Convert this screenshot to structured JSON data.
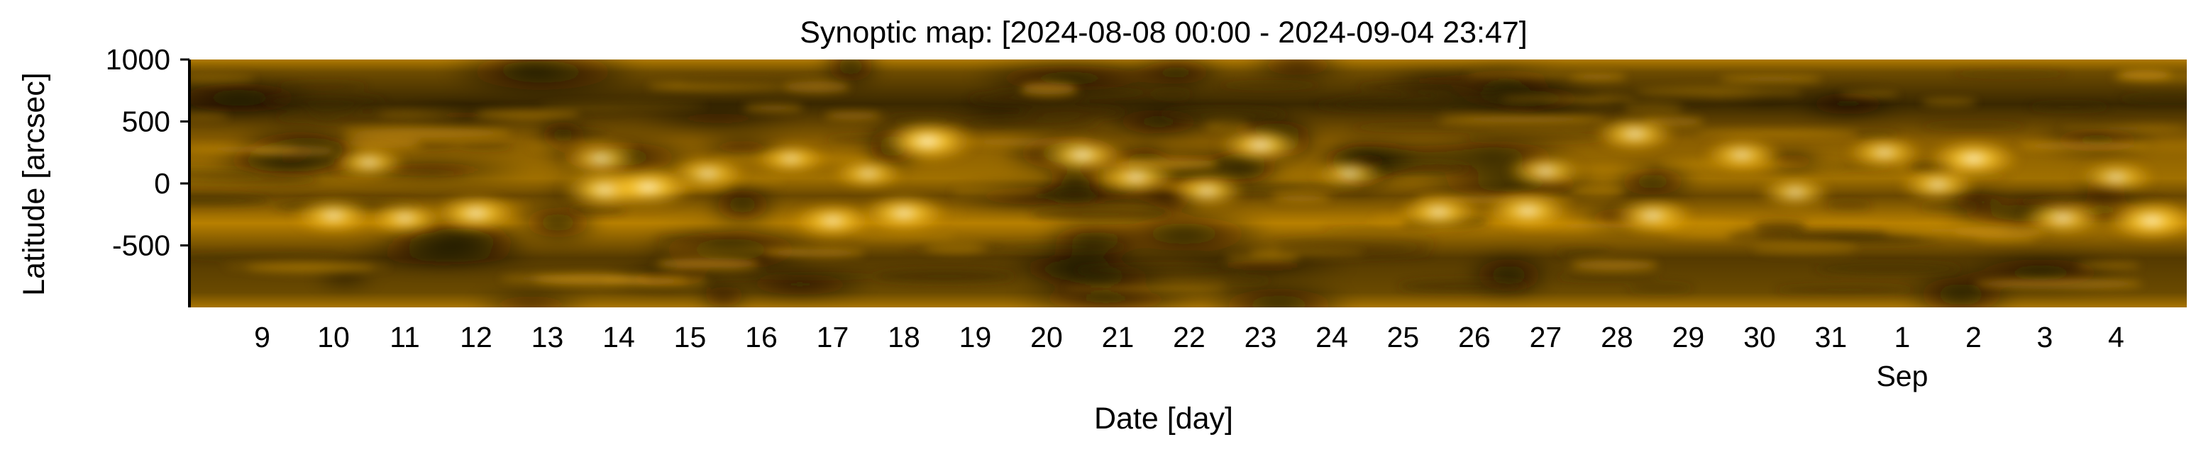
{
  "chart_data": {
    "type": "heatmap",
    "title": "Synoptic map: [2024-08-08 00:00 - 2024-09-04 23:47]",
    "xlabel": "Date [day]",
    "ylabel": "Latitude [arcsec]",
    "x_range": [
      "2024-08-08 00:00",
      "2024-09-04 23:47"
    ],
    "ylim": [
      -1000,
      1000
    ],
    "y_ticks": [
      {
        "value": 1000,
        "label": "1000"
      },
      {
        "value": 500,
        "label": "500"
      },
      {
        "value": 0,
        "label": "0"
      },
      {
        "value": -500,
        "label": "-500"
      }
    ],
    "x_ticks": [
      {
        "date": "2024-08-09",
        "label": "9"
      },
      {
        "date": "2024-08-10",
        "label": "10"
      },
      {
        "date": "2024-08-11",
        "label": "11"
      },
      {
        "date": "2024-08-12",
        "label": "12"
      },
      {
        "date": "2024-08-13",
        "label": "13"
      },
      {
        "date": "2024-08-14",
        "label": "14"
      },
      {
        "date": "2024-08-15",
        "label": "15"
      },
      {
        "date": "2024-08-16",
        "label": "16"
      },
      {
        "date": "2024-08-17",
        "label": "17"
      },
      {
        "date": "2024-08-18",
        "label": "18"
      },
      {
        "date": "2024-08-19",
        "label": "19"
      },
      {
        "date": "2024-08-20",
        "label": "20"
      },
      {
        "date": "2024-08-21",
        "label": "21"
      },
      {
        "date": "2024-08-22",
        "label": "22"
      },
      {
        "date": "2024-08-23",
        "label": "23"
      },
      {
        "date": "2024-08-24",
        "label": "24"
      },
      {
        "date": "2024-08-25",
        "label": "25"
      },
      {
        "date": "2024-08-26",
        "label": "26"
      },
      {
        "date": "2024-08-27",
        "label": "27"
      },
      {
        "date": "2024-08-28",
        "label": "28"
      },
      {
        "date": "2024-08-29",
        "label": "29"
      },
      {
        "date": "2024-08-30",
        "label": "30"
      },
      {
        "date": "2024-08-31",
        "label": "31"
      },
      {
        "date": "2024-09-01",
        "label": "1"
      },
      {
        "date": "2024-09-02",
        "label": "2"
      },
      {
        "date": "2024-09-03",
        "label": "3"
      },
      {
        "date": "2024-09-04",
        "label": "4"
      }
    ],
    "month_labels": [
      {
        "date": "2024-09-01",
        "label": "Sep"
      }
    ],
    "colormap": [
      "#1e1400",
      "#5a3c00",
      "#a87000",
      "#e0a000",
      "#ffd24a",
      "#fff2c0"
    ],
    "bright_regions": [
      {
        "date": "2024-08-18 08:00",
        "lat": 340,
        "intensity": 1.0
      },
      {
        "date": "2024-08-13 20:00",
        "lat": -50,
        "intensity": 0.9
      },
      {
        "date": "2024-08-14 10:00",
        "lat": -30,
        "intensity": 0.9
      },
      {
        "date": "2024-08-12 00:00",
        "lat": -240,
        "intensity": 0.8
      },
      {
        "date": "2024-08-10 00:00",
        "lat": -260,
        "intensity": 0.7
      },
      {
        "date": "2024-08-11 00:00",
        "lat": -280,
        "intensity": 0.6
      },
      {
        "date": "2024-08-13 18:00",
        "lat": 200,
        "intensity": 0.6
      },
      {
        "date": "2024-08-10 12:00",
        "lat": 170,
        "intensity": 0.5
      },
      {
        "date": "2024-08-15 06:00",
        "lat": 80,
        "intensity": 0.6
      },
      {
        "date": "2024-08-16 10:00",
        "lat": 200,
        "intensity": 0.5
      },
      {
        "date": "2024-08-17 00:00",
        "lat": -300,
        "intensity": 0.7
      },
      {
        "date": "2024-08-18 00:00",
        "lat": -240,
        "intensity": 0.8
      },
      {
        "date": "2024-08-17 12:00",
        "lat": 80,
        "intensity": 0.5
      },
      {
        "date": "2024-08-20 12:00",
        "lat": 230,
        "intensity": 0.8
      },
      {
        "date": "2024-08-21 06:00",
        "lat": 50,
        "intensity": 0.7
      },
      {
        "date": "2024-08-23 00:00",
        "lat": 310,
        "intensity": 0.8
      },
      {
        "date": "2024-08-22 06:00",
        "lat": -60,
        "intensity": 0.6
      },
      {
        "date": "2024-08-24 06:00",
        "lat": 80,
        "intensity": 0.5
      },
      {
        "date": "2024-08-25 12:00",
        "lat": -230,
        "intensity": 0.7
      },
      {
        "date": "2024-08-26 18:00",
        "lat": -220,
        "intensity": 0.8
      },
      {
        "date": "2024-08-27 00:00",
        "lat": 100,
        "intensity": 0.6
      },
      {
        "date": "2024-08-28 06:00",
        "lat": 400,
        "intensity": 0.7
      },
      {
        "date": "2024-08-28 12:00",
        "lat": -260,
        "intensity": 0.7
      },
      {
        "date": "2024-08-29 18:00",
        "lat": 230,
        "intensity": 0.6
      },
      {
        "date": "2024-08-30 12:00",
        "lat": -70,
        "intensity": 0.5
      },
      {
        "date": "2024-08-31 18:00",
        "lat": 250,
        "intensity": 0.6
      },
      {
        "date": "2024-09-02 00:00",
        "lat": 200,
        "intensity": 0.9
      },
      {
        "date": "2024-09-01 12:00",
        "lat": -10,
        "intensity": 0.6
      },
      {
        "date": "2024-09-03 06:00",
        "lat": -280,
        "intensity": 0.7
      },
      {
        "date": "2024-09-04 12:00",
        "lat": -300,
        "intensity": 0.9
      },
      {
        "date": "2024-09-04 00:00",
        "lat": 50,
        "intensity": 0.6
      }
    ],
    "grid": false,
    "legend": "none"
  }
}
